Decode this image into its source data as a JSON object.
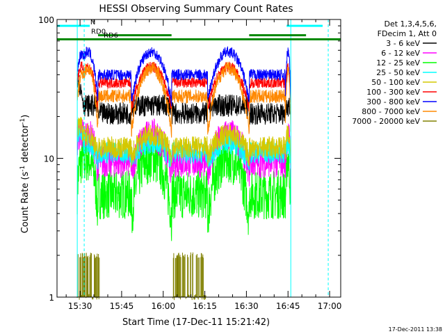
{
  "chart_data": {
    "type": "line",
    "title": "HESSI Observing Summary Count Rates",
    "xlabel": "Start Time (17-Dec-11 15:21:42)",
    "ylabel_main": "Count Rate (s",
    "ylabel_sup1": "-1",
    "ylabel_mid": " detector",
    "ylabel_sup2": "-1",
    "ylabel_end": ")",
    "yscale": "log",
    "ylim": [
      1,
      100
    ],
    "xlim_minutes": [
      15.35,
      17.0
    ],
    "y_ticks": [
      {
        "value": 1,
        "label": "1"
      },
      {
        "value": 10,
        "label": "10"
      },
      {
        "value": 100,
        "label": "100"
      }
    ],
    "x_ticks": [
      {
        "minute": 30,
        "label": "15:30"
      },
      {
        "minute": 45,
        "label": "15:45"
      },
      {
        "minute": 60,
        "label": "16:00"
      },
      {
        "minute": 75,
        "label": "16:15"
      },
      {
        "minute": 90,
        "label": "16:30"
      },
      {
        "minute": 105,
        "label": "16:45"
      },
      {
        "minute": 120,
        "label": "17:00"
      }
    ],
    "legend_header": [
      "Det 1,3,4,5,6,",
      "FDecim 1, Att 0"
    ],
    "series": [
      {
        "name": "3 - 6 keV",
        "color": "#000000",
        "night": 21,
        "day": 24,
        "bump": 0,
        "noise": 0.08
      },
      {
        "name": "6 - 12 keV",
        "color": "#ff00ff",
        "night": 9.5,
        "day": 12,
        "bump": 0.55,
        "noise": 0.12
      },
      {
        "name": "12 - 25 keV",
        "color": "#00ff00",
        "night": 5.5,
        "day": 7.5,
        "bump": 0.85,
        "noise": 0.18
      },
      {
        "name": "25 - 50 keV",
        "color": "#00ffff",
        "night": 11,
        "day": 11.5,
        "bump": 0.3,
        "noise": 0.08
      },
      {
        "name": "50 - 100 keV",
        "color": "#d4c800",
        "night": 12,
        "day": 13,
        "bump": 0.35,
        "noise": 0.08
      },
      {
        "name": "100 - 300 keV",
        "color": "#ff0000",
        "night": 35,
        "day": 34,
        "bump": 0.3,
        "noise": 0.04
      },
      {
        "name": "300 - 800 keV",
        "color": "#0000ff",
        "night": 40,
        "day": 42,
        "bump": 0.4,
        "noise": 0.04
      },
      {
        "name": "800 - 7000 keV",
        "color": "#ff8800",
        "night": 28,
        "day": 30,
        "bump": 0.6,
        "noise": 0.05
      },
      {
        "name": "7000 - 20000 keV",
        "color": "#808000",
        "night": 0,
        "day": 0,
        "bump": 0,
        "noise": 0
      }
    ],
    "night_intervals": [
      [
        36.5,
        48.5
      ],
      [
        63,
        76
      ],
      [
        91,
        104
      ]
    ],
    "data_gaps": [
      [
        21.7,
        29.0
      ],
      [
        106.0,
        121.7
      ]
    ],
    "annotations": [
      {
        "label": "N",
        "color": "#00cccc"
      },
      {
        "label": "RD0",
        "color": "#008800"
      },
      {
        "label": "RD6",
        "color": "#008800"
      }
    ],
    "footer_date": "17-Dec-2011 13:38"
  }
}
